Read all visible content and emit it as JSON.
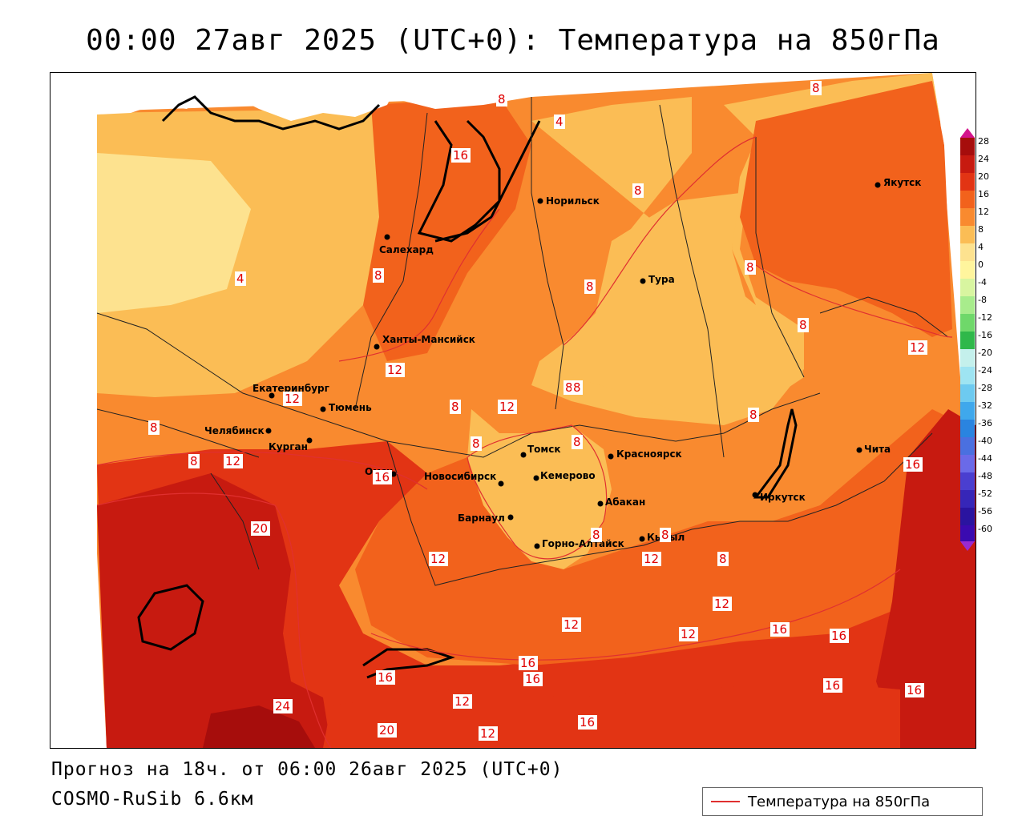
{
  "title": "00:00 27авг 2025 (UTC+0): Температура на 850гПа",
  "footer": {
    "forecast": "Прогноз на 18ч. от 06:00 26авг 2025 (UTC+0)",
    "model": "COSMO-RuSib 6.6км"
  },
  "legend": {
    "series_label": "Температура на 850гПа",
    "series_color": "#e03030",
    "scale_ticks": [
      "28",
      "24",
      "20",
      "16",
      "12",
      "8",
      "4",
      "0",
      "-4",
      "-8",
      "-12",
      "-16",
      "-20",
      "-24",
      "-28",
      "-32",
      "-36",
      "-40",
      "-44",
      "-48",
      "-52",
      "-56",
      "-60"
    ]
  },
  "colors": {
    "t_0_4": "#fde28f",
    "t_4_8": "#fbbd55",
    "t_8_12": "#f98a2f",
    "t_12_16": "#f2621c",
    "t_16_20": "#e23414",
    "t_20_24": "#c71a10",
    "t_24_28": "#a60d0c"
  },
  "cities": [
    {
      "name": "Норильск"
    },
    {
      "name": "Якутск"
    },
    {
      "name": "Салехард"
    },
    {
      "name": "Тура"
    },
    {
      "name": "Ханты-Мансийск"
    },
    {
      "name": "Екатеринбург"
    },
    {
      "name": "Тюмень"
    },
    {
      "name": "Челябинск"
    },
    {
      "name": "Курган"
    },
    {
      "name": "Омск"
    },
    {
      "name": "Новосибирск"
    },
    {
      "name": "Томск"
    },
    {
      "name": "Кемерово"
    },
    {
      "name": "Красноярск"
    },
    {
      "name": "Барнаул"
    },
    {
      "name": "Абакан"
    },
    {
      "name": "Горно-Алтайск"
    },
    {
      "name": "Кызыл"
    },
    {
      "name": "Иркутск"
    },
    {
      "name": "Чита"
    }
  ],
  "contour_labels": [
    "8",
    "4",
    "8",
    "16",
    "8",
    "8",
    "4",
    "8",
    "8",
    "8",
    "8",
    "12",
    "12",
    "8",
    "12",
    "8",
    "8",
    "8",
    "8",
    "8",
    "12",
    "16",
    "12",
    "8",
    "16",
    "20",
    "8",
    "8",
    "8",
    "12",
    "12",
    "12",
    "12",
    "12",
    "16",
    "16",
    "16",
    "16",
    "12",
    "16",
    "24",
    "16",
    "20",
    "12",
    "16",
    "16"
  ]
}
